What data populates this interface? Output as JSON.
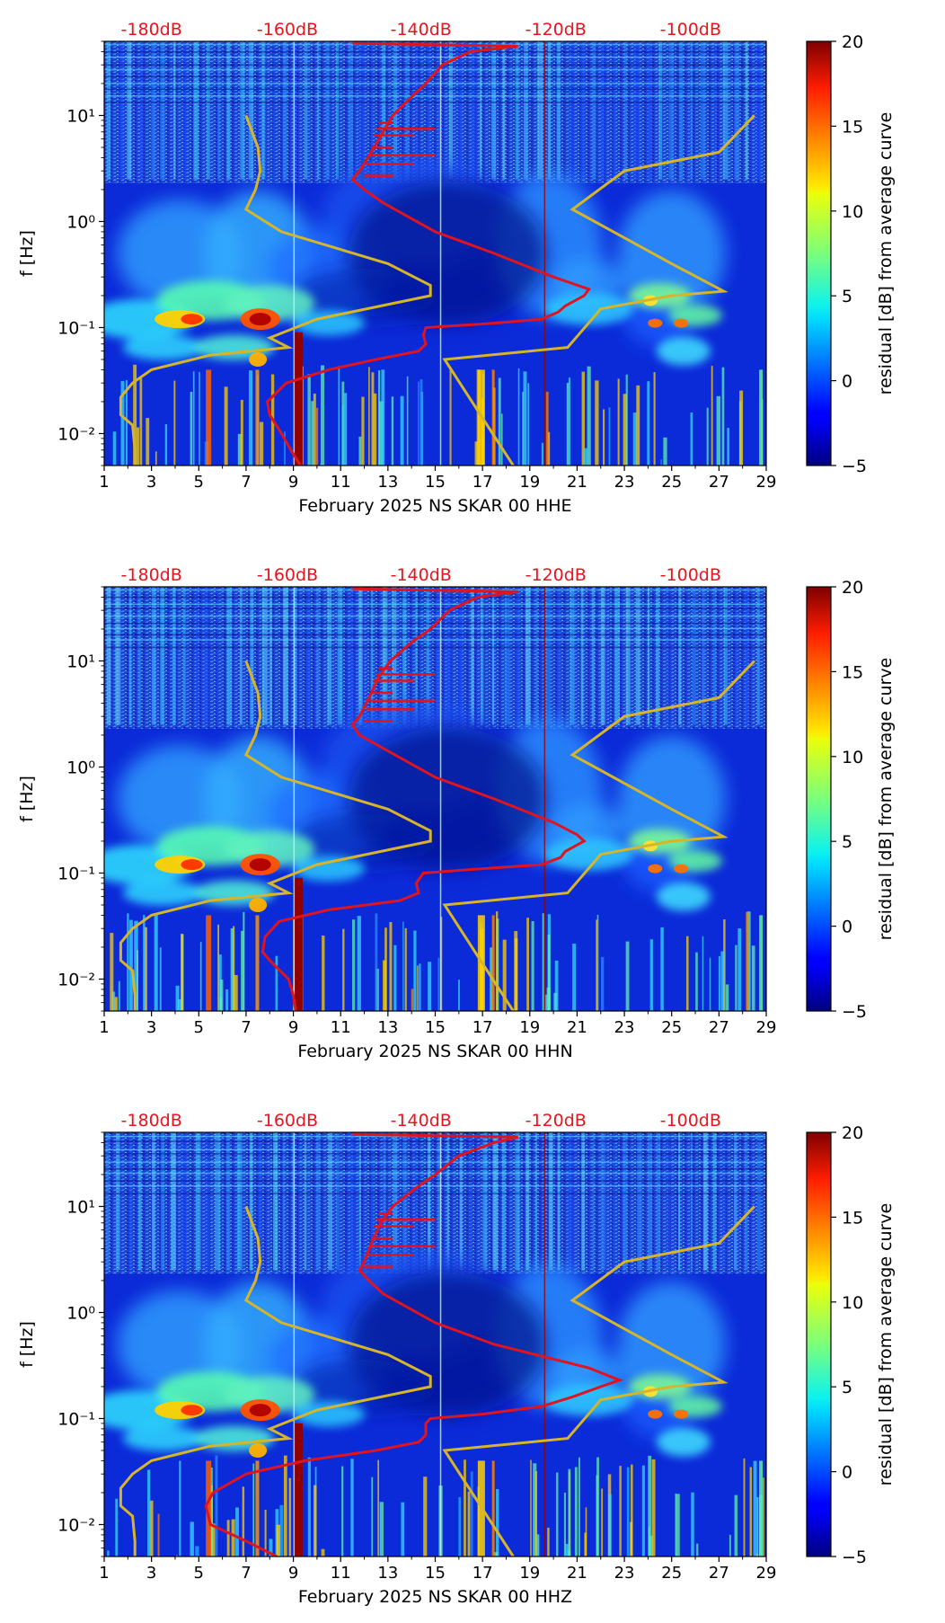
{
  "chart_data": [
    {
      "type": "heatmap",
      "xlabel": "February 2025 NS SKAR 00 HHE",
      "ylabel": "f [Hz]",
      "colorbar_label": "residual [dB] from average curve",
      "colorbar_ticks": [
        "−5",
        "0",
        "5",
        "10",
        "15",
        "20"
      ],
      "colorbar_values": [
        -5,
        0,
        5,
        10,
        15,
        20
      ],
      "clim": [
        -5,
        20
      ],
      "x_ticks": [
        "1",
        "3",
        "5",
        "7",
        "9",
        "11",
        "13",
        "15",
        "17",
        "19",
        "21",
        "23",
        "25",
        "27",
        "29"
      ],
      "x_values": [
        1,
        3,
        5,
        7,
        9,
        11,
        13,
        15,
        17,
        19,
        21,
        23,
        25,
        27,
        29
      ],
      "xlim": [
        1,
        29
      ],
      "y_ticks": [
        "10⁻²",
        "10⁻¹",
        "10⁰",
        "10¹"
      ],
      "y_values": [
        0.01,
        0.1,
        1,
        10
      ],
      "ylim": [
        0.005,
        50
      ],
      "db_labels": [
        "-180dB",
        "-160dB",
        "-140dB",
        "-120dB",
        "-100dB"
      ],
      "db_values": [
        -180,
        -160,
        -140,
        -120,
        -100
      ],
      "red_curve": [
        [
          0.005,
          9.3
        ],
        [
          0.007,
          8.9
        ],
        [
          0.01,
          8.5
        ],
        [
          0.015,
          8.0
        ],
        [
          0.02,
          7.9
        ],
        [
          0.03,
          8.7
        ],
        [
          0.04,
          10.5
        ],
        [
          0.05,
          12.5
        ],
        [
          0.06,
          14.3
        ],
        [
          0.07,
          14.6
        ],
        [
          0.085,
          14.5
        ],
        [
          0.1,
          14.6
        ],
        [
          0.11,
          17.5
        ],
        [
          0.12,
          19.5
        ],
        [
          0.14,
          20.2
        ],
        [
          0.16,
          20.5
        ],
        [
          0.2,
          21.3
        ],
        [
          0.23,
          21.5
        ],
        [
          0.3,
          20.0
        ],
        [
          0.5,
          17.5
        ],
        [
          0.8,
          15.0
        ],
        [
          1.5,
          12.8
        ],
        [
          2.0,
          12.0
        ],
        [
          2.5,
          11.5
        ],
        [
          3.0,
          11.8
        ],
        [
          4.5,
          12.3
        ],
        [
          7.0,
          12.8
        ],
        [
          10,
          13.2
        ],
        [
          15,
          14.0
        ],
        [
          20,
          14.6
        ],
        [
          30,
          15.3
        ],
        [
          40,
          16.5
        ],
        [
          45,
          18.5
        ],
        [
          48,
          11.5
        ]
      ],
      "yellow_curve": [
        [
          10,
          7.0
        ],
        [
          5,
          7.5
        ],
        [
          3,
          7.6
        ],
        [
          2,
          7.4
        ],
        [
          1.3,
          7.0
        ],
        [
          0.8,
          8.5
        ],
        [
          0.4,
          13.0
        ],
        [
          0.25,
          14.8
        ],
        [
          0.2,
          14.8
        ],
        [
          0.12,
          10.0
        ],
        [
          0.08,
          8.0
        ],
        [
          0.065,
          8.8
        ],
        [
          0.055,
          5.5
        ],
        [
          0.04,
          3.0
        ],
        [
          0.03,
          2.2
        ],
        [
          0.022,
          1.7
        ],
        [
          0.015,
          1.7
        ],
        [
          0.012,
          2.2
        ],
        [
          0.007,
          2.3
        ],
        [
          0.005,
          2.3
        ]
      ],
      "yellow_curve_right": [
        [
          0.005,
          18.3
        ],
        [
          0.05,
          15.4
        ],
        [
          0.065,
          20.6
        ],
        [
          0.15,
          22.0
        ],
        [
          0.2,
          25.0
        ],
        [
          0.22,
          27.2
        ],
        [
          0.4,
          25.0
        ],
        [
          1.3,
          20.8
        ],
        [
          3.0,
          23.0
        ],
        [
          4.5,
          27.0
        ],
        [
          10,
          28.5
        ]
      ]
    },
    {
      "type": "heatmap",
      "xlabel": "February 2025 NS SKAR 00 HHN",
      "ylabel": "f [Hz]",
      "colorbar_label": "residual [dB] from average curve",
      "colorbar_ticks": [
        "−5",
        "0",
        "5",
        "10",
        "15",
        "20"
      ],
      "colorbar_values": [
        -5,
        0,
        5,
        10,
        15,
        20
      ],
      "clim": [
        -5,
        20
      ],
      "x_ticks": [
        "1",
        "3",
        "5",
        "7",
        "9",
        "11",
        "13",
        "15",
        "17",
        "19",
        "21",
        "23",
        "25",
        "27",
        "29"
      ],
      "x_values": [
        1,
        3,
        5,
        7,
        9,
        11,
        13,
        15,
        17,
        19,
        21,
        23,
        25,
        27,
        29
      ],
      "xlim": [
        1,
        29
      ],
      "y_ticks": [
        "10⁻²",
        "10⁻¹",
        "10⁰",
        "10¹"
      ],
      "y_values": [
        0.01,
        0.1,
        1,
        10
      ],
      "ylim": [
        0.005,
        50
      ],
      "db_labels": [
        "-180dB",
        "-160dB",
        "-140dB",
        "-120dB",
        "-100dB"
      ],
      "db_values": [
        -180,
        -160,
        -140,
        -120,
        -100
      ],
      "red_curve": [
        [
          0.005,
          9.1
        ],
        [
          0.007,
          9.0
        ],
        [
          0.01,
          8.8
        ],
        [
          0.015,
          8.0
        ],
        [
          0.018,
          7.7
        ],
        [
          0.025,
          7.8
        ],
        [
          0.035,
          8.4
        ],
        [
          0.045,
          10.5
        ],
        [
          0.055,
          13.5
        ],
        [
          0.065,
          14.3
        ],
        [
          0.08,
          14.2
        ],
        [
          0.1,
          14.5
        ],
        [
          0.11,
          17.0
        ],
        [
          0.12,
          19.5
        ],
        [
          0.14,
          20.3
        ],
        [
          0.16,
          20.5
        ],
        [
          0.2,
          21.3
        ],
        [
          0.23,
          21.0
        ],
        [
          0.3,
          20.0
        ],
        [
          0.5,
          17.5
        ],
        [
          0.8,
          15.0
        ],
        [
          1.5,
          12.8
        ],
        [
          2.0,
          11.8
        ],
        [
          2.5,
          11.5
        ],
        [
          3.0,
          11.8
        ],
        [
          4.5,
          12.2
        ],
        [
          7.0,
          12.6
        ],
        [
          10,
          13.1
        ],
        [
          15,
          14.0
        ],
        [
          20,
          14.8
        ],
        [
          30,
          15.6
        ],
        [
          40,
          16.8
        ],
        [
          45,
          18.5
        ],
        [
          48,
          11.5
        ]
      ],
      "yellow_curve": [
        [
          10,
          7.0
        ],
        [
          5,
          7.5
        ],
        [
          3,
          7.6
        ],
        [
          2,
          7.4
        ],
        [
          1.3,
          7.0
        ],
        [
          0.8,
          8.5
        ],
        [
          0.4,
          13.0
        ],
        [
          0.25,
          14.8
        ],
        [
          0.2,
          14.8
        ],
        [
          0.12,
          10.0
        ],
        [
          0.08,
          8.0
        ],
        [
          0.065,
          8.8
        ],
        [
          0.055,
          5.5
        ],
        [
          0.04,
          3.0
        ],
        [
          0.03,
          2.2
        ],
        [
          0.022,
          1.7
        ],
        [
          0.015,
          1.7
        ],
        [
          0.012,
          2.2
        ],
        [
          0.007,
          2.3
        ],
        [
          0.005,
          2.3
        ]
      ],
      "yellow_curve_right": [
        [
          0.005,
          18.3
        ],
        [
          0.05,
          15.4
        ],
        [
          0.065,
          20.6
        ],
        [
          0.15,
          22.0
        ],
        [
          0.2,
          25.0
        ],
        [
          0.22,
          27.2
        ],
        [
          0.4,
          25.0
        ],
        [
          1.3,
          20.8
        ],
        [
          3.0,
          23.0
        ],
        [
          4.5,
          27.0
        ],
        [
          10,
          28.5
        ]
      ]
    },
    {
      "type": "heatmap",
      "xlabel": "February 2025 NS SKAR 00 HHZ",
      "ylabel": "f [Hz]",
      "colorbar_label": "residual [dB] from average curve",
      "colorbar_ticks": [
        "−5",
        "0",
        "5",
        "10",
        "15",
        "20"
      ],
      "colorbar_values": [
        -5,
        0,
        5,
        10,
        15,
        20
      ],
      "clim": [
        -5,
        20
      ],
      "x_ticks": [
        "1",
        "3",
        "5",
        "7",
        "9",
        "11",
        "13",
        "15",
        "17",
        "19",
        "21",
        "23",
        "25",
        "27",
        "29"
      ],
      "x_values": [
        1,
        3,
        5,
        7,
        9,
        11,
        13,
        15,
        17,
        19,
        21,
        23,
        25,
        27,
        29
      ],
      "xlim": [
        1,
        29
      ],
      "y_ticks": [
        "10⁻²",
        "10⁻¹",
        "10⁰",
        "10¹"
      ],
      "y_values": [
        0.01,
        0.1,
        1,
        10
      ],
      "ylim": [
        0.005,
        50
      ],
      "db_labels": [
        "-180dB",
        "-160dB",
        "-140dB",
        "-120dB",
        "-100dB"
      ],
      "db_values": [
        -180,
        -160,
        -140,
        -120,
        -100
      ],
      "red_curve": [
        [
          0.005,
          8.3
        ],
        [
          0.007,
          7.0
        ],
        [
          0.01,
          5.5
        ],
        [
          0.015,
          5.3
        ],
        [
          0.02,
          5.6
        ],
        [
          0.03,
          7.0
        ],
        [
          0.04,
          9.5
        ],
        [
          0.05,
          12.5
        ],
        [
          0.06,
          14.3
        ],
        [
          0.07,
          14.6
        ],
        [
          0.09,
          14.6
        ],
        [
          0.1,
          14.8
        ],
        [
          0.11,
          17.0
        ],
        [
          0.13,
          19.5
        ],
        [
          0.16,
          20.8
        ],
        [
          0.2,
          22.0
        ],
        [
          0.23,
          22.8
        ],
        [
          0.3,
          21.5
        ],
        [
          0.5,
          17.5
        ],
        [
          0.8,
          15.0
        ],
        [
          1.5,
          12.8
        ],
        [
          2.0,
          12.2
        ],
        [
          2.5,
          11.8
        ],
        [
          3.0,
          12.0
        ],
        [
          4.5,
          12.3
        ],
        [
          7.0,
          12.7
        ],
        [
          10,
          13.2
        ],
        [
          15,
          14.2
        ],
        [
          20,
          15.0
        ],
        [
          30,
          16.0
        ],
        [
          40,
          17.5
        ],
        [
          45,
          18.5
        ],
        [
          48,
          11.5
        ]
      ],
      "yellow_curve": [
        [
          10,
          7.0
        ],
        [
          5,
          7.5
        ],
        [
          3,
          7.6
        ],
        [
          2,
          7.4
        ],
        [
          1.3,
          7.0
        ],
        [
          0.8,
          8.5
        ],
        [
          0.4,
          13.0
        ],
        [
          0.25,
          14.8
        ],
        [
          0.2,
          14.8
        ],
        [
          0.12,
          10.0
        ],
        [
          0.08,
          8.0
        ],
        [
          0.065,
          8.8
        ],
        [
          0.055,
          5.5
        ],
        [
          0.04,
          3.0
        ],
        [
          0.03,
          2.2
        ],
        [
          0.022,
          1.7
        ],
        [
          0.015,
          1.7
        ],
        [
          0.012,
          2.2
        ],
        [
          0.007,
          2.3
        ],
        [
          0.005,
          2.3
        ]
      ],
      "yellow_curve_right": [
        [
          0.005,
          18.3
        ],
        [
          0.05,
          15.4
        ],
        [
          0.065,
          20.6
        ],
        [
          0.15,
          22.0
        ],
        [
          0.2,
          25.0
        ],
        [
          0.22,
          27.2
        ],
        [
          0.4,
          25.0
        ],
        [
          1.3,
          20.8
        ],
        [
          3.0,
          23.0
        ],
        [
          4.5,
          27.0
        ],
        [
          10,
          28.5
        ]
      ]
    }
  ]
}
